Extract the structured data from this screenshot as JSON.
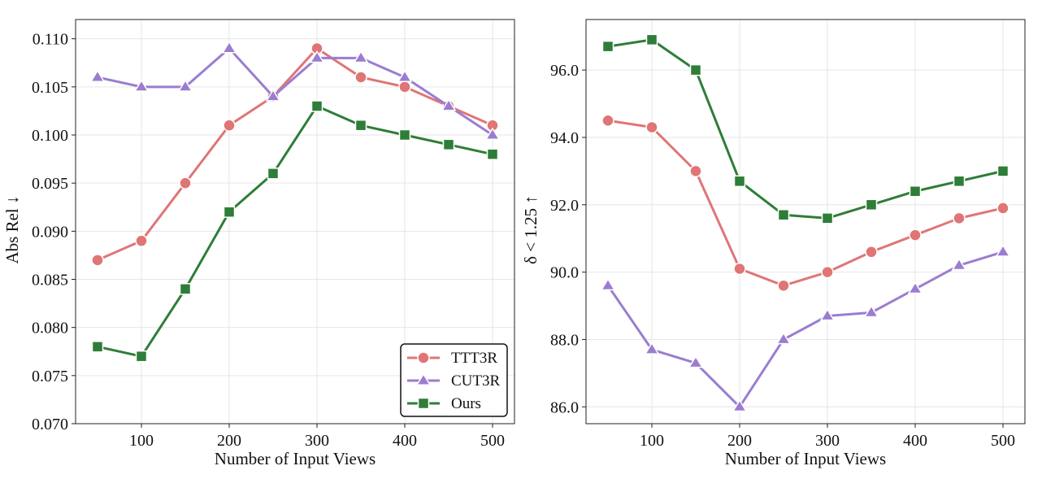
{
  "series_meta": [
    {
      "name": "TTT3R",
      "color": "#e07575",
      "marker": "circle"
    },
    {
      "name": "CUT3R",
      "color": "#9b7dd0",
      "marker": "triangle"
    },
    {
      "name": "Ours",
      "color": "#2e7d38",
      "marker": "square"
    }
  ],
  "chart_data": [
    {
      "type": "line",
      "title": "",
      "xlabel": "Number of Input Views",
      "ylabel": "Abs Rel ↓",
      "x": [
        50,
        100,
        150,
        200,
        250,
        300,
        350,
        400,
        450,
        500
      ],
      "xlim": [
        25,
        525
      ],
      "ylim": [
        0.07,
        0.112
      ],
      "xticks": [
        100,
        200,
        300,
        400,
        500
      ],
      "yticks": [
        0.07,
        0.075,
        0.08,
        0.085,
        0.09,
        0.095,
        0.1,
        0.105,
        0.11
      ],
      "ytick_decimals": 3,
      "grid": true,
      "legend": "bottom-right",
      "series": [
        {
          "name": "TTT3R",
          "values": [
            0.087,
            0.089,
            0.095,
            0.101,
            0.104,
            0.109,
            0.106,
            0.105,
            0.103,
            0.101
          ]
        },
        {
          "name": "CUT3R",
          "values": [
            0.106,
            0.105,
            0.105,
            0.109,
            0.104,
            0.108,
            0.108,
            0.106,
            0.103,
            0.1
          ]
        },
        {
          "name": "Ours",
          "values": [
            0.078,
            0.077,
            0.084,
            0.092,
            0.096,
            0.103,
            0.101,
            0.1,
            0.099,
            0.098
          ]
        }
      ]
    },
    {
      "type": "line",
      "title": "",
      "xlabel": "Number of Input Views",
      "ylabel": "δ < 1.25 ↑",
      "x": [
        50,
        100,
        150,
        200,
        250,
        300,
        350,
        400,
        450,
        500
      ],
      "xlim": [
        25,
        525
      ],
      "ylim": [
        85.5,
        97.5
      ],
      "xticks": [
        100,
        200,
        300,
        400,
        500
      ],
      "yticks": [
        86.0,
        88.0,
        90.0,
        92.0,
        94.0,
        96.0
      ],
      "ytick_decimals": 1,
      "grid": true,
      "legend": "none",
      "series": [
        {
          "name": "TTT3R",
          "values": [
            94.5,
            94.3,
            93.0,
            90.1,
            89.6,
            90.0,
            90.6,
            91.1,
            91.6,
            91.9
          ]
        },
        {
          "name": "CUT3R",
          "values": [
            89.6,
            87.7,
            87.3,
            86.0,
            88.0,
            88.7,
            88.8,
            89.5,
            90.2,
            90.6
          ]
        },
        {
          "name": "Ours",
          "values": [
            96.7,
            96.9,
            96.0,
            92.7,
            91.7,
            91.6,
            92.0,
            92.4,
            92.7,
            93.0
          ]
        }
      ]
    }
  ]
}
